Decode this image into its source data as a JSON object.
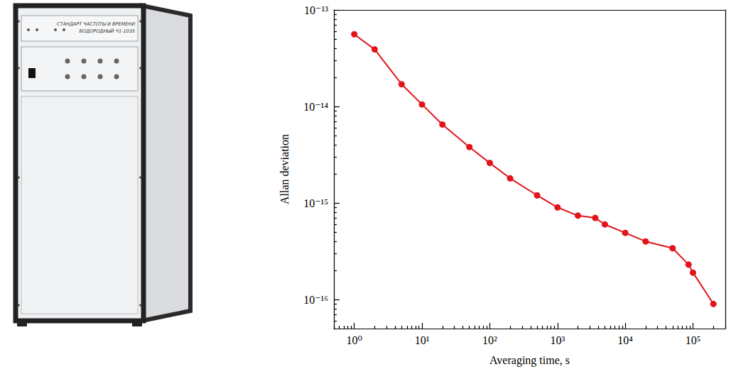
{
  "photo": {
    "texts": [
      "СТАНДАРТ ЧАСТОТЫ И ВРЕМЕНИ",
      "ВОДОРОДНЫЙ Ч1-1035"
    ]
  },
  "chart_data": {
    "type": "line",
    "x_label": "Averaging time, s",
    "y_label": "Allan deviation",
    "x": [
      1,
      2,
      5,
      10,
      20,
      50,
      100,
      200,
      500,
      1000,
      2000,
      3600,
      5000,
      10000,
      20000,
      50000,
      86000,
      100000,
      200000
    ],
    "values": [
      5.6e-14,
      3.9e-14,
      1.7e-14,
      1.05e-14,
      6.5e-15,
      3.8e-15,
      2.6e-15,
      1.8e-15,
      1.2e-15,
      9e-16,
      7.4e-16,
      7e-16,
      6e-16,
      4.9e-16,
      4e-16,
      3.4e-16,
      2.3e-16,
      1.9e-16,
      9e-17
    ],
    "color": "#e3141b",
    "marker": "circle",
    "line_style": "solid",
    "log": true,
    "grid": false,
    "xlim": [
      0.5,
      300000
    ],
    "xticks": [
      {
        "value": 1,
        "label": "10⁰"
      },
      {
        "value": 10,
        "label": "10¹"
      },
      {
        "value": 100,
        "label": "10²"
      },
      {
        "value": 1000,
        "label": "10³"
      },
      {
        "value": 10000,
        "label": "10⁴"
      },
      {
        "value": 100000,
        "label": "10⁵"
      }
    ],
    "ylim": [
      5e-17,
      1e-13
    ],
    "yticks": [
      {
        "value": 1e-16,
        "label": "10⁻¹⁶"
      },
      {
        "value": 1e-15,
        "label": "10⁻¹⁵"
      },
      {
        "value": 1e-14,
        "label": "10⁻¹⁴"
      },
      {
        "value": 1e-13,
        "label": "10⁻¹³"
      }
    ]
  }
}
